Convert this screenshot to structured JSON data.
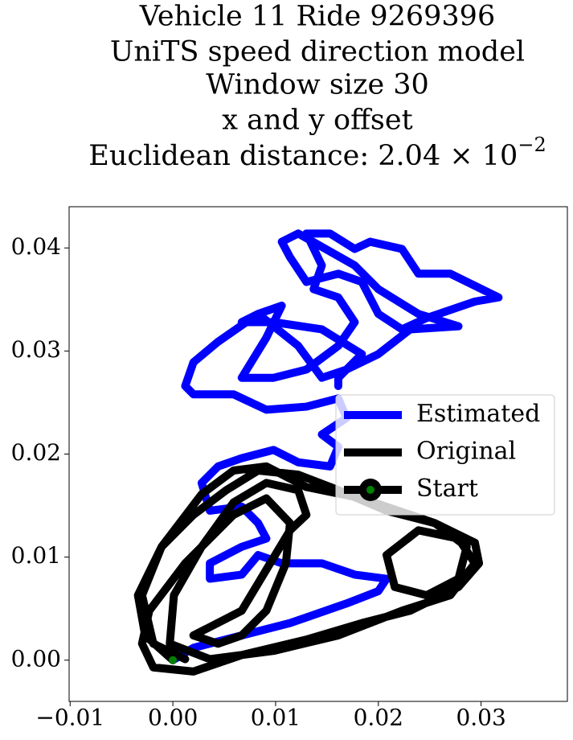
{
  "chart_data": {
    "type": "line",
    "title_lines": [
      "Vehicle 11 Ride 9269396",
      "UniTS speed direction model",
      "Window size 30",
      "x and y offset"
    ],
    "title_distance": {
      "base": "Euclidean distance: 2.04 × 10",
      "exponent": "−2"
    },
    "xlim": [
      -0.0101,
      0.0384
    ],
    "ylim": [
      -0.004,
      0.044
    ],
    "xticks": [
      {
        "value": -0.01,
        "label": "−0.01"
      },
      {
        "value": 0,
        "label": "0.00"
      },
      0.01,
      0.02,
      0.03
    ],
    "yticks": [
      {
        "value": 0,
        "label": "0.00"
      },
      0.01,
      0.02,
      0.03,
      0.04
    ],
    "legend": "center right",
    "series": [
      {
        "name": "Estimated",
        "color": "blue",
        "x": [
          0,
          0.002,
          0.0067,
          0.0114,
          0.0169,
          0.02,
          0.0208,
          0.0177,
          0.0145,
          0.0106,
          0.0083,
          0.0067,
          0.0036,
          0.0036,
          0.0067,
          0.0091,
          0.0083,
          0.0067,
          0.0036,
          0.0028,
          0.0044,
          0.0067,
          0.0098,
          0.0122,
          0.0153,
          0.0161,
          0.0145,
          0.0169,
          0.0161,
          0.013,
          0.0091,
          0.0059,
          0.002,
          0.0012,
          0.002,
          0.0044,
          0.0083,
          0.0106,
          0.0091,
          0.0067,
          0.0098,
          0.013,
          0.0161,
          0.0177,
          0.0161,
          0.0137,
          0.0145,
          0.013,
          0.0153,
          0.0177,
          0.0192,
          0.0223,
          0.0239,
          0.027,
          0.0317,
          0.0294,
          0.0247,
          0.0223,
          0.02,
          0.0184,
          0.0161,
          0.013,
          0.0114,
          0.0106,
          0.0122,
          0.0177,
          0.02,
          0.0239,
          0.0278,
          0.0231,
          0.02,
          0.0169,
          0.0145,
          0.0122,
          0.0083,
          0.0067,
          0.0098,
          0.0145,
          0.0184,
          0.0161,
          0.0161
        ],
        "values": [
          0,
          0.0012,
          0.0024,
          0.0036,
          0.0055,
          0.0067,
          0.0079,
          0.0083,
          0.0094,
          0.0094,
          0.0102,
          0.0083,
          0.0079,
          0.0094,
          0.011,
          0.0118,
          0.0133,
          0.0149,
          0.0145,
          0.0172,
          0.0188,
          0.0196,
          0.0204,
          0.0192,
          0.0188,
          0.0207,
          0.0219,
          0.0235,
          0.0254,
          0.0246,
          0.0243,
          0.0258,
          0.0258,
          0.0266,
          0.0289,
          0.0309,
          0.0336,
          0.0344,
          0.0313,
          0.0274,
          0.0274,
          0.0282,
          0.0305,
          0.0328,
          0.0352,
          0.036,
          0.0383,
          0.0414,
          0.0414,
          0.0399,
          0.0406,
          0.0399,
          0.0375,
          0.0375,
          0.0352,
          0.0348,
          0.0332,
          0.0321,
          0.0336,
          0.0367,
          0.0375,
          0.0367,
          0.0391,
          0.0406,
          0.0414,
          0.0383,
          0.036,
          0.0336,
          0.0324,
          0.0321,
          0.0297,
          0.0282,
          0.0274,
          0.0305,
          0.0336,
          0.0328,
          0.0328,
          0.0321,
          0.0297,
          0.0274,
          0.0266
        ]
      },
      {
        "name": "Original",
        "color": "black",
        "x": [
          0,
          -0.0027,
          -0.0034,
          -0.0011,
          0.002,
          0.0052,
          0.0083,
          0.0122,
          0.0161,
          0.0208,
          0.0255,
          0.0294,
          0.0298,
          0.0278,
          0.0231,
          0.0184,
          0.013,
          0.0067,
          0.002,
          -0.0019,
          -0.003,
          -0.0023,
          0.0012,
          0.0059,
          0.0091,
          0.0114,
          0.011,
          0.0091,
          0.0067,
          0.0044,
          0.002,
          0.0067,
          0.0114,
          0.013,
          0.0122,
          0.0091,
          0.0059,
          0.0028,
          0.0001,
          -0.0003,
          0.0036,
          0.0098,
          0.0161,
          0.0223,
          0.027,
          0.0294,
          0.0278,
          0.0239,
          0.0208,
          0.0216,
          0.0247,
          0.0278,
          0.0286,
          0.0255,
          0.0184,
          0.013,
          0.0091,
          0.0059,
          0.0028,
          -0.0011,
          -0.003,
          -0.0019,
          0.0012
        ],
        "values": [
          0,
          0.0024,
          0.0063,
          0.011,
          0.0141,
          0.0165,
          0.0184,
          0.018,
          0.0165,
          0.0145,
          0.0133,
          0.0114,
          0.0094,
          0.0071,
          0.0048,
          0.0036,
          0.002,
          0.0005,
          -0.0011,
          -0.0007,
          0.0016,
          0.0048,
          0.0094,
          0.0141,
          0.0157,
          0.0133,
          0.0094,
          0.0048,
          0.0024,
          0.0016,
          0.0024,
          0.0048,
          0.0126,
          0.0141,
          0.0165,
          0.0172,
          0.0153,
          0.011,
          0.0063,
          0.0016,
          0.0001,
          0.0009,
          0.0024,
          0.0048,
          0.0063,
          0.0094,
          0.0118,
          0.0126,
          0.0102,
          0.0071,
          0.0063,
          0.0079,
          0.011,
          0.0133,
          0.0157,
          0.0168,
          0.0188,
          0.0184,
          0.0161,
          0.011,
          0.0063,
          0.0016,
          0.0001
        ]
      },
      {
        "name": "Start",
        "color": "green",
        "marker_edge_color": "black",
        "x": [
          0
        ],
        "values": [
          0
        ]
      }
    ]
  }
}
